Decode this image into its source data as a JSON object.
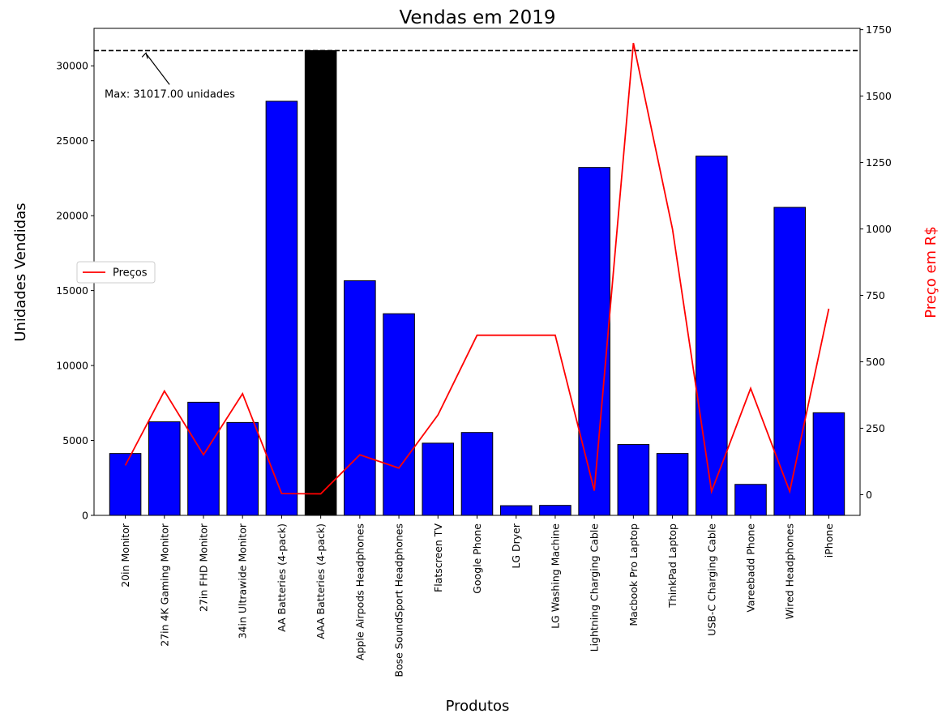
{
  "chart_data": {
    "type": "bar",
    "title": "Vendas em 2019",
    "xlabel": "Produtos",
    "ylabel": "Unidades Vendidas",
    "y2label": "Preço em R$",
    "ylim": [
      0,
      32500
    ],
    "y2lim": [
      -78,
      1755
    ],
    "yticks": [
      0,
      5000,
      10000,
      15000,
      20000,
      25000,
      30000
    ],
    "y2ticks": [
      0,
      250,
      500,
      750,
      1000,
      1250,
      1500,
      1750
    ],
    "categories": [
      "20in Monitor",
      "27in 4K Gaming Monitor",
      "27in FHD Monitor",
      "34in Ultrawide Monitor",
      "AA Batteries (4-pack)",
      "AAA Batteries (4-pack)",
      "Apple Airpods Headphones",
      "Bose SoundSport Headphones",
      "Flatscreen TV",
      "Google Phone",
      "LG Dryer",
      "LG Washing Machine",
      "Lightning Charging Cable",
      "Macbook Pro Laptop",
      "ThinkPad Laptop",
      "USB-C Charging Cable",
      "Vareebadd Phone",
      "Wired Headphones",
      "iPhone"
    ],
    "series": [
      {
        "type": "bar",
        "axis": "left",
        "values": [
          4129,
          6244,
          7550,
          6199,
          27635,
          31017,
          15661,
          13457,
          4819,
          5532,
          646,
          666,
          23217,
          4728,
          4130,
          23975,
          2068,
          20557,
          6849
        ]
      },
      {
        "type": "line",
        "axis": "right",
        "name": "Preços",
        "values": [
          110,
          390,
          150,
          380,
          4,
          3,
          150,
          100,
          300,
          600,
          600,
          600,
          15,
          1700,
          1000,
          12,
          400,
          12,
          700
        ]
      }
    ],
    "bar_color": "#0000ff",
    "highlight_color": "#000000",
    "highlight_index": 5,
    "line_color": "#ff0000",
    "max_line": 31017,
    "annotation": "Max: 31017.00 unidades",
    "legend_position": "center-left"
  }
}
